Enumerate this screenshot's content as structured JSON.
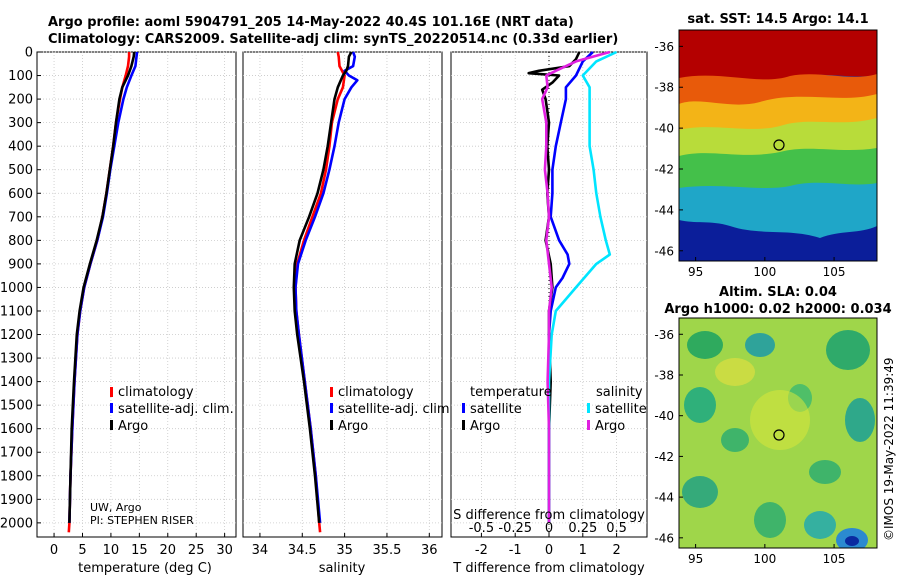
{
  "titles": {
    "line1": "Argo profile: aoml 5904791_205 14-May-2022 40.4S 101.16E (NRT data)",
    "line2": "Climatology: CARS2009. Satellite-adj clim: synTS_20220514.nc (0.33d earlier)"
  },
  "depth_ticks": [
    "0",
    "100",
    "200",
    "300",
    "400",
    "500",
    "600",
    "700",
    "800",
    "900",
    "1000",
    "1100",
    "1200",
    "1300",
    "1400",
    "1500",
    "1600",
    "1700",
    "1800",
    "1900",
    "2000"
  ],
  "credits": {
    "line1": "UW, Argo",
    "line2": "PI: STEPHEN RISER"
  },
  "sst_map": {
    "title": "sat. SST: 14.5 Argo: 14.1",
    "lat_ticks": [
      "-36",
      "-38",
      "-40",
      "-42",
      "-44",
      "-46"
    ],
    "lon_ticks": [
      "95",
      "100",
      "105"
    ]
  },
  "sla_map": {
    "title1": "Altim. SLA: 0.04",
    "title2": "Argo h1000: 0.02 h2000: 0.034",
    "lat_ticks": [
      "-36",
      "-38",
      "-40",
      "-42",
      "-44",
      "-46"
    ],
    "lon_ticks": [
      "95",
      "100",
      "105"
    ]
  },
  "watermark": "©IMOS 19-May-2022 11:39:49",
  "colors": {
    "climatology": "#ff0000",
    "satellite": "#0000ff",
    "argo": "#000000",
    "cyan": "#00e5ff",
    "magenta": "#e020e0"
  },
  "chart_data": [
    {
      "type": "line",
      "xlabel": "temperature (deg C)",
      "ylabel": "depth",
      "xlim": [
        -3,
        32
      ],
      "ylim": [
        2060,
        0
      ],
      "xticks": [
        "0",
        "5",
        "10",
        "15",
        "20",
        "25",
        "30"
      ],
      "legend": [
        "climatology",
        "satellite-adj. clim.",
        "Argo"
      ],
      "series": [
        {
          "name": "climatology",
          "depth": [
            0,
            20,
            60,
            100,
            150,
            200,
            300,
            400,
            500,
            600,
            700,
            800,
            900,
            1000,
            1100,
            1200,
            1400,
            1600,
            1800,
            2000,
            2040
          ],
          "values": [
            13.2,
            13.2,
            13.0,
            12.6,
            12.0,
            11.6,
            10.9,
            10.4,
            9.8,
            9.2,
            8.5,
            7.6,
            6.4,
            5.3,
            4.6,
            4.1,
            3.6,
            3.2,
            2.9,
            2.7,
            2.6
          ]
        },
        {
          "name": "satellite-adj. clim.",
          "depth": [
            0,
            20,
            60,
            100,
            150,
            200,
            300,
            400,
            500,
            600,
            700,
            800,
            900,
            1000,
            1100,
            1200,
            1400,
            1600,
            1800,
            2000
          ],
          "values": [
            14.6,
            14.5,
            14.3,
            13.6,
            12.8,
            12.2,
            11.3,
            10.6,
            9.9,
            9.3,
            8.6,
            7.6,
            6.4,
            5.3,
            4.6,
            4.1,
            3.6,
            3.2,
            2.9,
            2.7
          ]
        },
        {
          "name": "Argo",
          "depth": [
            0,
            20,
            60,
            100,
            150,
            200,
            300,
            400,
            500,
            600,
            700,
            800,
            900,
            1000,
            1100,
            1200,
            1400,
            1600,
            1800,
            2000
          ],
          "values": [
            14.1,
            14.0,
            13.6,
            13.0,
            12.0,
            11.5,
            10.9,
            10.4,
            9.8,
            9.2,
            8.5,
            7.5,
            6.3,
            5.2,
            4.5,
            4.0,
            3.5,
            3.1,
            2.9,
            2.7
          ]
        }
      ]
    },
    {
      "type": "line",
      "xlabel": "salinity",
      "ylabel": "depth",
      "xlim": [
        33.8,
        36.15
      ],
      "ylim": [
        2060,
        0
      ],
      "xticks": [
        "34",
        "34.5",
        "35",
        "35.5",
        "36"
      ],
      "legend": [
        "climatology",
        "satellite-adj. clim.",
        "Argo"
      ],
      "series": [
        {
          "name": "climatology",
          "depth": [
            0,
            20,
            60,
            100,
            150,
            200,
            300,
            400,
            500,
            600,
            700,
            800,
            900,
            1000,
            1100,
            1200,
            1400,
            1600,
            1800,
            2000,
            2040
          ],
          "values": [
            34.92,
            34.93,
            34.94,
            35.0,
            34.98,
            34.92,
            34.85,
            34.82,
            34.78,
            34.72,
            34.62,
            34.52,
            34.44,
            34.42,
            34.43,
            34.46,
            34.53,
            34.6,
            34.66,
            34.7,
            34.71
          ]
        },
        {
          "name": "satellite-adj. clim.",
          "depth": [
            0,
            20,
            60,
            80,
            100,
            120,
            150,
            200,
            300,
            400,
            500,
            600,
            700,
            800,
            900,
            1000,
            1100,
            1200,
            1400,
            1600,
            1800,
            2000
          ],
          "values": [
            35.1,
            35.12,
            35.1,
            35.0,
            35.05,
            35.15,
            35.08,
            35.0,
            34.93,
            34.88,
            34.82,
            34.75,
            34.65,
            34.54,
            34.45,
            34.42,
            34.43,
            34.46,
            34.53,
            34.6,
            34.66,
            34.71
          ]
        },
        {
          "name": "Argo",
          "depth": [
            0,
            20,
            60,
            80,
            100,
            150,
            200,
            300,
            400,
            500,
            600,
            700,
            800,
            900,
            1000,
            1100,
            1200,
            1400,
            1600,
            1800,
            2000
          ],
          "values": [
            35.08,
            35.05,
            35.04,
            35.02,
            34.98,
            34.92,
            34.88,
            34.84,
            34.8,
            34.75,
            34.68,
            34.58,
            34.47,
            34.41,
            34.4,
            34.41,
            34.44,
            34.52,
            34.59,
            34.65,
            34.7
          ]
        }
      ]
    },
    {
      "type": "line",
      "xlabel": "T difference from climatology",
      "xlabel2": "S difference from climatology",
      "ylabel": "depth",
      "xlim": [
        -2.9,
        2.9
      ],
      "ylim": [
        2060,
        0
      ],
      "xticks": [
        "-2",
        "-1",
        "0",
        "1",
        "2"
      ],
      "xticks2": [
        "-0.5",
        "-0.25",
        "0",
        "0.25",
        "0.5"
      ],
      "legend_titles": [
        "temperature",
        "salinity"
      ],
      "legend": [
        "satellite",
        "Argo",
        "satellite",
        "Argo"
      ],
      "series": [
        {
          "name": "temperature satellite",
          "depth": [
            0,
            40,
            100,
            150,
            200,
            300,
            400,
            500,
            600,
            700,
            800,
            860,
            900,
            960,
            1000,
            1100,
            1200,
            1400,
            1600,
            1800,
            2000
          ],
          "values": [
            1.3,
            1.0,
            0.8,
            0.5,
            0.5,
            0.35,
            0.2,
            0.1,
            0.1,
            0.05,
            0.3,
            0.55,
            0.6,
            0.4,
            0.2,
            0.05,
            0.0,
            0.0,
            0.0,
            0.0,
            0.0
          ]
        },
        {
          "name": "temperature Argo",
          "depth": [
            0,
            30,
            60,
            80,
            90,
            100,
            130,
            160,
            200,
            300,
            400,
            500,
            600,
            700,
            800,
            900,
            1000,
            1100,
            1200,
            1400,
            1600,
            1800,
            2000
          ],
          "values": [
            0.9,
            0.8,
            0.6,
            -0.3,
            -0.6,
            0.3,
            0.1,
            -0.2,
            -0.1,
            0.0,
            -0.05,
            0.0,
            -0.05,
            0.0,
            -0.1,
            0.05,
            0.1,
            0.0,
            0.0,
            0.05,
            0.0,
            0.0,
            0.0
          ]
        },
        {
          "name": "salinity satellite",
          "depth": [
            0,
            40,
            100,
            150,
            200,
            300,
            400,
            500,
            600,
            700,
            800,
            860,
            900,
            1000,
            1100,
            1200,
            1400,
            1600,
            1800,
            2000
          ],
          "values": [
            0.5,
            0.35,
            0.25,
            0.3,
            0.3,
            0.3,
            0.3,
            0.33,
            0.35,
            0.38,
            0.42,
            0.45,
            0.35,
            0.2,
            0.05,
            0.02,
            0.0,
            0.0,
            0.0,
            0.0
          ]
        },
        {
          "name": "salinity Argo",
          "depth": [
            0,
            40,
            80,
            100,
            150,
            200,
            300,
            400,
            500,
            600,
            700,
            800,
            900,
            1000,
            1100,
            1200,
            1400,
            1600,
            1800,
            2000
          ],
          "values": [
            0.45,
            0.2,
            0.05,
            -0.02,
            -0.01,
            -0.05,
            -0.02,
            -0.02,
            -0.03,
            -0.01,
            0.0,
            -0.02,
            0.0,
            0.02,
            0.0,
            0.0,
            -0.01,
            0.0,
            0.0,
            0.0
          ]
        }
      ]
    }
  ]
}
